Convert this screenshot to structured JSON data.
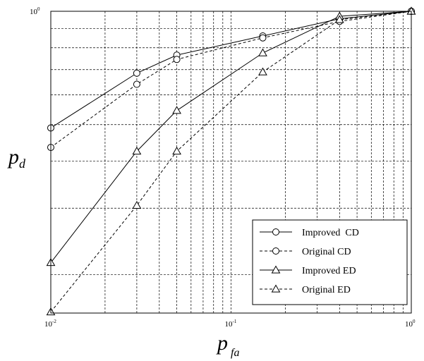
{
  "chart_data": {
    "type": "line",
    "xscale": "log",
    "yscale": "log",
    "xlim": [
      0.01,
      1
    ],
    "ylim": [
      0.158,
      1
    ],
    "grid": true,
    "legend_position": "bottom-right",
    "xlabel": {
      "main": "p",
      "sub": "fa"
    },
    "ylabel": {
      "main": "p",
      "sub": "d"
    },
    "x_tick_labels": [
      {
        "base": "10",
        "exp": "-2"
      },
      {
        "base": "10",
        "exp": "-1"
      },
      {
        "base": "10",
        "exp": "0"
      }
    ],
    "y_tick_labels": [
      {
        "base": "10",
        "exp": "0"
      }
    ],
    "series": [
      {
        "name": "Improved  CD",
        "marker": "circle",
        "dash": "solid",
        "x": [
          0.01,
          0.03,
          0.05,
          0.15,
          0.4,
          1.0
        ],
        "y": [
          0.49,
          0.685,
          0.765,
          0.86,
          0.955,
          1.0
        ]
      },
      {
        "name": "Original CD",
        "marker": "circle",
        "dash": "dashed",
        "x": [
          0.01,
          0.03,
          0.05,
          0.15,
          0.4,
          1.0
        ],
        "y": [
          0.435,
          0.64,
          0.745,
          0.85,
          0.94,
          1.0
        ]
      },
      {
        "name": "Improved ED",
        "marker": "triangle",
        "dash": "solid",
        "x": [
          0.01,
          0.03,
          0.05,
          0.15,
          0.4,
          1.0
        ],
        "y": [
          0.215,
          0.425,
          0.545,
          0.775,
          0.97,
          1.0
        ]
      },
      {
        "name": "Original ED",
        "marker": "triangle",
        "dash": "dashed",
        "x": [
          0.01,
          0.03,
          0.05,
          0.15,
          0.4,
          1.0
        ],
        "y": [
          0.159,
          0.305,
          0.425,
          0.69,
          0.95,
          1.0
        ]
      }
    ]
  }
}
